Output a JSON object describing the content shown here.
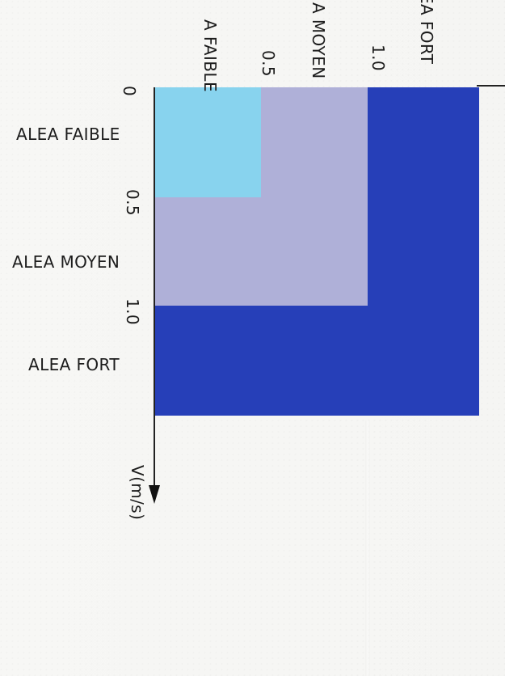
{
  "diagram": {
    "top_axis": {
      "ticks": [
        "0.5",
        "1.0"
      ],
      "classes": [
        "A FAIBLE",
        "A MOYEN",
        "EA FORT"
      ]
    },
    "left_axis": {
      "ticks": [
        "0",
        "0.5",
        "1.0"
      ],
      "classes": [
        "ALEA FAIBLE",
        "ALEA MOYEN",
        "ALEA FORT"
      ],
      "unit": "V(m/s)"
    },
    "zones": [
      {
        "name": "weak",
        "color": "#88d3ee",
        "x_max": 0.5,
        "y_max": 0.5
      },
      {
        "name": "medium",
        "color": "#afb0d8",
        "x_max": 1.0,
        "y_max": 1.0
      },
      {
        "name": "strong",
        "color": "#263fb8",
        "x_max": 1.5,
        "y_max": 1.5
      }
    ]
  }
}
